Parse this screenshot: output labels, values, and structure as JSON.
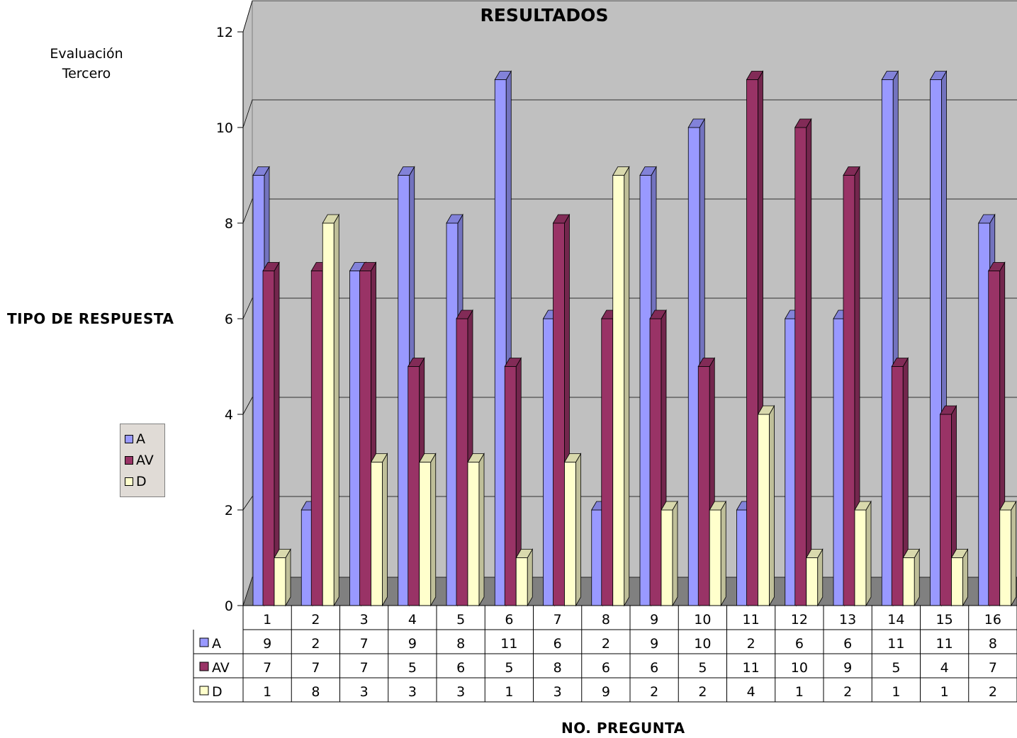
{
  "chart_data": {
    "type": "bar",
    "style": "3d-clustered-column",
    "title": "RESULTADOS",
    "subtitle": "Evaluación Tercero",
    "ylabel": "TIPO DE RESPUESTA",
    "xlabel": "NO. PREGUNTA",
    "ylim": [
      0,
      12
    ],
    "yticks": [
      "0",
      "2",
      "4",
      "6",
      "8",
      "10",
      "12"
    ],
    "grid": true,
    "legend_position": "left",
    "data_table": true,
    "categories": [
      "1",
      "2",
      "3",
      "4",
      "5",
      "6",
      "7",
      "8",
      "9",
      "10",
      "11",
      "12",
      "13",
      "14",
      "15",
      "16"
    ],
    "series": [
      {
        "name": "A",
        "color": "#9999ff",
        "values": [
          9,
          2,
          7,
          9,
          8,
          11,
          6,
          2,
          9,
          10,
          2,
          6,
          6,
          11,
          11,
          8
        ]
      },
      {
        "name": "AV",
        "color": "#993366",
        "values": [
          7,
          7,
          7,
          5,
          6,
          5,
          8,
          6,
          6,
          5,
          11,
          10,
          9,
          5,
          4,
          7
        ]
      },
      {
        "name": "D",
        "color": "#ffffcc",
        "values": [
          1,
          8,
          3,
          3,
          3,
          1,
          3,
          9,
          2,
          2,
          4,
          1,
          2,
          1,
          1,
          2
        ]
      }
    ]
  }
}
